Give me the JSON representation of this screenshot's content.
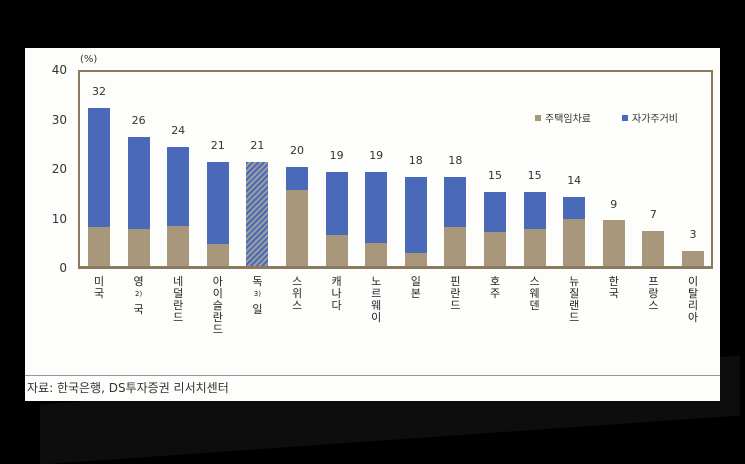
{
  "chart_data": {
    "type": "bar",
    "stacked": true,
    "title": "",
    "unit_label": "(%)",
    "xlabel": "",
    "ylabel": "(%)",
    "ylim": [
      0,
      40
    ],
    "yticks": [
      0,
      10,
      20,
      30,
      40
    ],
    "grid": false,
    "legend_position": "top-right",
    "categories": [
      "미국",
      "영국",
      "네덜란드",
      "아이슬란드",
      "독일",
      "스위스",
      "캐나다",
      "노르웨이",
      "일본",
      "핀란드",
      "호주",
      "스웨덴",
      "뉴질랜드",
      "한국",
      "프랑스",
      "이탈리아"
    ],
    "category_footnotes": {
      "영국": "2)",
      "독일": "3)"
    },
    "totals": [
      32,
      26,
      24,
      21,
      21,
      20,
      19,
      19,
      18,
      18,
      15,
      15,
      14,
      9,
      7,
      3
    ],
    "series": [
      {
        "name": "주택임차료",
        "color": "#a8977a",
        "values": [
          7.8,
          7.4,
          8.0,
          4.4,
          null,
          15.4,
          6.2,
          4.6,
          2.6,
          7.8,
          6.8,
          7.4,
          9.4,
          9.3,
          7.0,
          3.0
        ]
      },
      {
        "name": "자가주거비",
        "color": "#4a69b8",
        "values": [
          24.2,
          18.6,
          16.0,
          16.6,
          null,
          4.6,
          12.8,
          14.4,
          15.4,
          10.2,
          8.2,
          7.6,
          4.6,
          0,
          0,
          0
        ]
      }
    ],
    "annotations": [
      "독일 bar hatched (breakdown not shown), total 21"
    ]
  },
  "legend": {
    "rent": "주택임차료",
    "owner": "자가주거비"
  },
  "source": "자료: 한국은행, DS투자증권 리서치센터",
  "colors": {
    "rent": "#a8977a",
    "owner": "#4a69b8",
    "frame": "#8b7a5e"
  }
}
